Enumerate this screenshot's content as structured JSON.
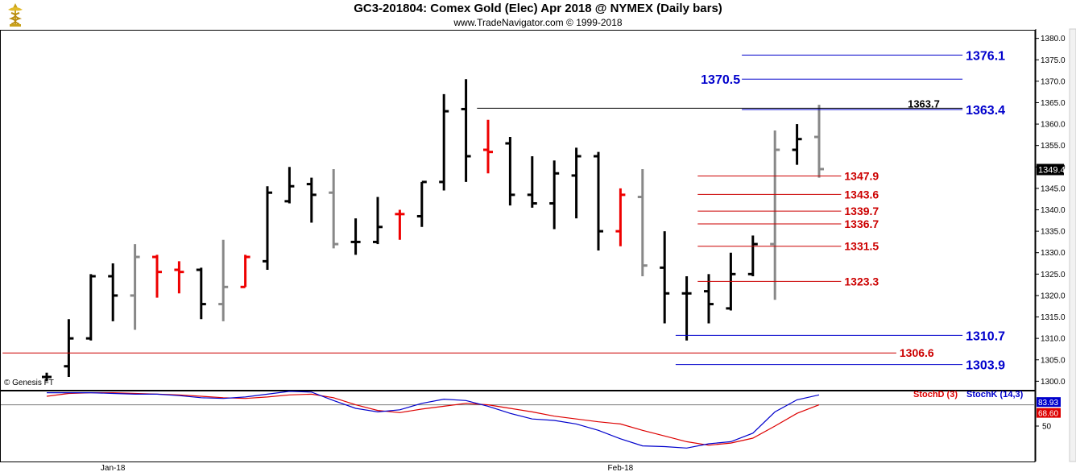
{
  "header": {
    "title": "GC3-201804:  Comex Gold (Elec) Apr 2018 @ NYMEX  (Daily bars)",
    "subtitle": "www.TradeNavigator.com © 1999-2018"
  },
  "colors": {
    "up": "#000000",
    "down": "#ee0000",
    "neutral": "#888888",
    "blue_level": "#0000cc",
    "red_level": "#cc0000",
    "stochK": "#0000cc",
    "stochD": "#dd0000",
    "last_price_box": "#000000",
    "stochK_box": "#0000cc",
    "stochD_box": "#dd0000"
  },
  "chart_data": [
    {
      "type": "ohlc",
      "ylim": [
        1298,
        1382
      ],
      "y_ticks": [
        1300,
        1305,
        1310,
        1315,
        1320,
        1325,
        1330,
        1335,
        1340,
        1345,
        1350,
        1355,
        1360,
        1365,
        1370,
        1375,
        1380
      ],
      "x_labels": [
        {
          "bar": 3,
          "text": "Jan-18"
        },
        {
          "bar": 26,
          "text": "Feb-18"
        }
      ],
      "last_price": "1349.4",
      "copyright": "© Genesis FT",
      "bars": [
        {
          "o": 1301.0,
          "h": 1302.0,
          "l": 1300.0,
          "c": 1301.0,
          "color": "up"
        },
        {
          "o": 1303.5,
          "h": 1314.5,
          "l": 1301.0,
          "c": 1310.0,
          "color": "up"
        },
        {
          "o": 1310.0,
          "h": 1325.0,
          "l": 1309.5,
          "c": 1324.5,
          "color": "up"
        },
        {
          "o": 1324.5,
          "h": 1327.5,
          "l": 1314.0,
          "c": 1320.0,
          "color": "up"
        },
        {
          "o": 1320.0,
          "h": 1332.0,
          "l": 1312.0,
          "c": 1329.0,
          "color": "neutral"
        },
        {
          "o": 1329.0,
          "h": 1329.5,
          "l": 1319.5,
          "c": 1325.5,
          "color": "down"
        },
        {
          "o": 1326.0,
          "h": 1328.0,
          "l": 1320.5,
          "c": 1325.5,
          "color": "down"
        },
        {
          "o": 1326.0,
          "h": 1326.5,
          "l": 1314.5,
          "c": 1318.0,
          "color": "up"
        },
        {
          "o": 1318.0,
          "h": 1333.0,
          "l": 1314.0,
          "c": 1322.0,
          "color": "neutral"
        },
        {
          "o": 1322.0,
          "h": 1329.5,
          "l": 1322.0,
          "c": 1329.0,
          "color": "down"
        },
        {
          "o": 1328.0,
          "h": 1345.5,
          "l": 1326.0,
          "c": 1344.0,
          "color": "up"
        },
        {
          "o": 1342.0,
          "h": 1350.0,
          "l": 1341.5,
          "c": 1345.5,
          "color": "up"
        },
        {
          "o": 1346.0,
          "h": 1347.5,
          "l": 1337.0,
          "c": 1343.5,
          "color": "up"
        },
        {
          "o": 1344.0,
          "h": 1349.5,
          "l": 1331.0,
          "c": 1332.0,
          "color": "neutral"
        },
        {
          "o": 1332.5,
          "h": 1338.0,
          "l": 1329.5,
          "c": 1332.5,
          "color": "up"
        },
        {
          "o": 1332.5,
          "h": 1343.0,
          "l": 1332.0,
          "c": 1336.0,
          "color": "up"
        },
        {
          "o": 1339.0,
          "h": 1340.0,
          "l": 1333.0,
          "c": 1339.0,
          "color": "down"
        },
        {
          "o": 1338.5,
          "h": 1346.5,
          "l": 1336.0,
          "c": 1346.5,
          "color": "up"
        },
        {
          "o": 1346.5,
          "h": 1367.0,
          "l": 1344.5,
          "c": 1363.0,
          "color": "up"
        },
        {
          "o": 1363.5,
          "h": 1370.5,
          "l": 1346.5,
          "c": 1352.5,
          "color": "up"
        },
        {
          "o": 1354.0,
          "h": 1361.0,
          "l": 1348.5,
          "c": 1353.5,
          "color": "down"
        },
        {
          "o": 1355.5,
          "h": 1357.0,
          "l": 1341.0,
          "c": 1343.5,
          "color": "up"
        },
        {
          "o": 1343.5,
          "h": 1352.5,
          "l": 1340.5,
          "c": 1341.5,
          "color": "up"
        },
        {
          "o": 1341.5,
          "h": 1351.5,
          "l": 1335.5,
          "c": 1348.5,
          "color": "up"
        },
        {
          "o": 1348.0,
          "h": 1354.5,
          "l": 1338.0,
          "c": 1352.5,
          "color": "up"
        },
        {
          "o": 1352.5,
          "h": 1353.5,
          "l": 1330.5,
          "c": 1335.0,
          "color": "up"
        },
        {
          "o": 1335.0,
          "h": 1345.0,
          "l": 1331.5,
          "c": 1343.5,
          "color": "down"
        },
        {
          "o": 1343.0,
          "h": 1349.5,
          "l": 1324.5,
          "c": 1327.0,
          "color": "neutral"
        },
        {
          "o": 1326.5,
          "h": 1335.0,
          "l": 1313.5,
          "c": 1320.5,
          "color": "up"
        },
        {
          "o": 1320.5,
          "h": 1324.5,
          "l": 1309.5,
          "c": 1320.5,
          "color": "up"
        },
        {
          "o": 1321.0,
          "h": 1325.0,
          "l": 1313.5,
          "c": 1318.0,
          "color": "up"
        },
        {
          "o": 1317.0,
          "h": 1330.0,
          "l": 1316.5,
          "c": 1325.0,
          "color": "up"
        },
        {
          "o": 1325.0,
          "h": 1334.0,
          "l": 1324.5,
          "c": 1332.0,
          "color": "up"
        },
        {
          "o": 1332.0,
          "h": 1358.5,
          "l": 1319.0,
          "c": 1354.0,
          "color": "neutral"
        },
        {
          "o": 1354.0,
          "h": 1360.0,
          "l": 1350.5,
          "c": 1356.5,
          "color": "up"
        },
        {
          "o": 1357.0,
          "h": 1364.5,
          "l": 1347.5,
          "c": 1349.5,
          "color": "neutral"
        }
      ],
      "levels": [
        {
          "value": 1376.1,
          "label": "1376.1",
          "color": "blue",
          "x0_bar": 31.5,
          "x1_bar": 41.5,
          "label_side": "right"
        },
        {
          "value": 1370.5,
          "label": "1370.5",
          "color": "blue",
          "x0_bar": 31.5,
          "x1_bar": 41.5,
          "label_side": "left"
        },
        {
          "value": 1363.7,
          "label": "1363.7",
          "color": "black",
          "x0_bar": 19.5,
          "x1_bar": 41.5,
          "label_side": "mid"
        },
        {
          "value": 1363.4,
          "label": "1363.4",
          "color": "blue",
          "x0_bar": 31.5,
          "x1_bar": 41.5,
          "label_side": "right"
        },
        {
          "value": 1347.9,
          "label": "1347.9",
          "color": "red",
          "x0_bar": 29.5,
          "x1_bar": 36.0,
          "label_side": "end"
        },
        {
          "value": 1343.6,
          "label": "1343.6",
          "color": "red",
          "x0_bar": 29.5,
          "x1_bar": 36.0,
          "label_side": "end"
        },
        {
          "value": 1339.7,
          "label": "1339.7",
          "color": "red",
          "x0_bar": 29.5,
          "x1_bar": 36.0,
          "label_side": "end"
        },
        {
          "value": 1336.7,
          "label": "1336.7",
          "color": "red",
          "x0_bar": 29.5,
          "x1_bar": 36.0,
          "label_side": "end"
        },
        {
          "value": 1331.5,
          "label": "1331.5",
          "color": "red",
          "x0_bar": 29.5,
          "x1_bar": 36.0,
          "label_side": "end"
        },
        {
          "value": 1323.3,
          "label": "1323.3",
          "color": "red",
          "x0_bar": 29.5,
          "x1_bar": 36.0,
          "label_side": "end"
        },
        {
          "value": 1310.7,
          "label": "1310.7",
          "color": "blue",
          "x0_bar": 28.5,
          "x1_bar": 41.5,
          "label_side": "right"
        },
        {
          "value": 1306.6,
          "label": "1306.6",
          "color": "red",
          "x0_bar": -2.0,
          "x1_bar": 38.5,
          "label_side": "end"
        },
        {
          "value": 1303.9,
          "label": "1303.9",
          "color": "blue",
          "x0_bar": 28.5,
          "x1_bar": 41.5,
          "label_side": "right"
        }
      ]
    },
    {
      "type": "line",
      "title": "",
      "ylim": [
        0,
        100
      ],
      "y_ticks": [
        50
      ],
      "ref_line": 80,
      "series": [
        {
          "name": "StochD (3)",
          "color": "stochD",
          "values": [
            92,
            96,
            97,
            97,
            96,
            95,
            94,
            92,
            90,
            89,
            91,
            94,
            95,
            90,
            80,
            72,
            69,
            74,
            78,
            82,
            80,
            75,
            70,
            64,
            60,
            56,
            53,
            44,
            36,
            28,
            23,
            26,
            33,
            50,
            68,
            80
          ]
        },
        {
          "name": "StochK (14,3)",
          "color": "stochK",
          "values": [
            97,
            97,
            97,
            96,
            95,
            95,
            93,
            90,
            89,
            91,
            95,
            99,
            98,
            86,
            75,
            70,
            73,
            82,
            88,
            86,
            78,
            68,
            60,
            58,
            53,
            44,
            32,
            22,
            21,
            19,
            25,
            28,
            40,
            70,
            87,
            94
          ]
        }
      ],
      "last_values": {
        "stochK": "83.93",
        "stochD": "68.60"
      }
    }
  ]
}
